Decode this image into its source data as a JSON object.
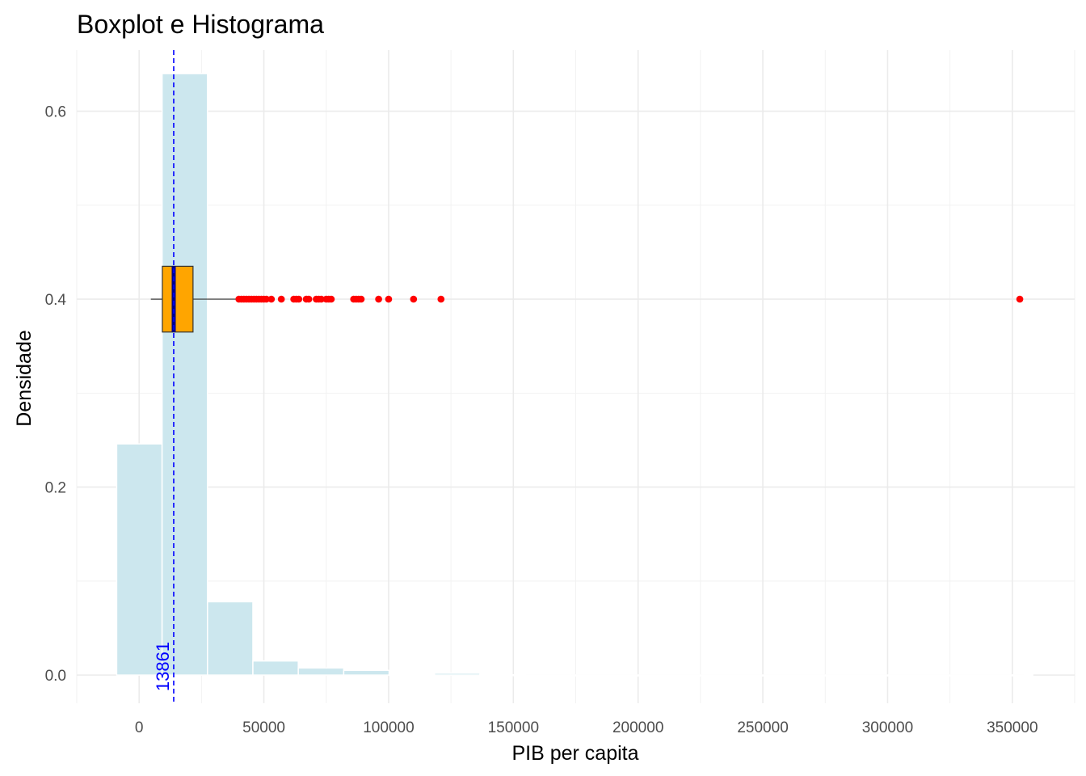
{
  "chart_data": {
    "type": "bar",
    "title": "Boxplot e Histograma",
    "xlabel": "PIB per capita",
    "ylabel": "Densidade",
    "xlim": [
      -25000,
      375000
    ],
    "ylim": [
      -0.03,
      0.665
    ],
    "grid": true,
    "x_ticks": [
      0,
      50000,
      100000,
      150000,
      200000,
      250000,
      300000,
      350000
    ],
    "x_tick_labels": [
      "0",
      "50000",
      "100000",
      "150000",
      "200000",
      "250000",
      "300000",
      "350000"
    ],
    "y_ticks": [
      0.0,
      0.2,
      0.4,
      0.6
    ],
    "y_tick_labels": [
      "0.0",
      "0.2",
      "0.4",
      "0.6"
    ],
    "histogram": {
      "color": "#cce7ee",
      "bins": [
        {
          "x0": -9000,
          "x1": 9200,
          "density": 0.246
        },
        {
          "x0": 9200,
          "x1": 27400,
          "density": 0.64
        },
        {
          "x0": 27400,
          "x1": 45600,
          "density": 0.078
        },
        {
          "x0": 45600,
          "x1": 63800,
          "density": 0.015
        },
        {
          "x0": 63800,
          "x1": 82000,
          "density": 0.0075
        },
        {
          "x0": 82000,
          "x1": 100200,
          "density": 0.005
        },
        {
          "x0": 100200,
          "x1": 118400,
          "density": 0.0007
        },
        {
          "x0": 118400,
          "x1": 136600,
          "density": 0.002
        },
        {
          "x0": 136600,
          "x1": 154800,
          "density": 0.0004
        },
        {
          "x0": 154800,
          "x1": 173000,
          "density": 0.0002
        },
        {
          "x0": 173000,
          "x1": 191200,
          "density": 0.0002
        },
        {
          "x0": 191200,
          "x1": 209400,
          "density": 0.0001
        },
        {
          "x0": 209400,
          "x1": 227600,
          "density": 0.0001
        },
        {
          "x0": 227600,
          "x1": 245800,
          "density": 0.0001
        },
        {
          "x0": 245800,
          "x1": 264000,
          "density": 0.0001
        },
        {
          "x0": 264000,
          "x1": 282200,
          "density": 0.0001
        },
        {
          "x0": 282200,
          "x1": 300400,
          "density": 0.0001
        },
        {
          "x0": 300400,
          "x1": 318600,
          "density": 0.0001
        },
        {
          "x0": 318600,
          "x1": 336800,
          "density": 0.0001
        },
        {
          "x0": 336800,
          "x1": 355000,
          "density": 0.0002
        },
        {
          "x0": 355000,
          "x1": 358200,
          "density": 0.0003
        }
      ]
    },
    "boxplot": {
      "y": 0.4,
      "height": 0.07,
      "whisker_low": 4700,
      "q1": 9300,
      "median": 13861,
      "q3": 21600,
      "whisker_high": 39500,
      "fill": "#ffa500",
      "median_color": "#00008b",
      "outlier_color": "#ff0000",
      "outliers": [
        40000,
        41000,
        42000,
        43000,
        44000,
        45000,
        46000,
        47000,
        48000,
        49000,
        50000,
        51000,
        53000,
        57000,
        62000,
        63000,
        64000,
        67000,
        68000,
        71000,
        72000,
        73000,
        75000,
        76000,
        77000,
        86000,
        87000,
        88000,
        89000,
        96000,
        100000,
        110000,
        121000,
        353000
      ]
    },
    "median_line": {
      "value": 13861,
      "label": "13861",
      "color": "#0000ff"
    }
  }
}
